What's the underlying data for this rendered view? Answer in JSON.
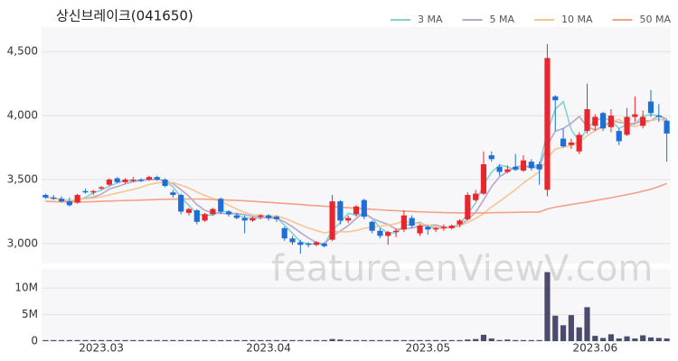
{
  "chart_data": {
    "type": "candlestick",
    "title": "상신브레이크(041650)",
    "watermark": "feature.enViewV.com",
    "up_color": "#e8262d",
    "down_color": "#1d6fd6",
    "volume_color": "#4b4b6e",
    "categories": [
      null,
      null,
      null,
      null,
      null,
      null,
      null,
      "2023.03",
      null,
      null,
      null,
      null,
      null,
      null,
      null,
      null,
      null,
      null,
      null,
      null,
      null,
      null,
      null,
      null,
      null,
      null,
      null,
      null,
      "2023.04",
      null,
      null,
      null,
      null,
      null,
      null,
      null,
      null,
      null,
      null,
      null,
      null,
      null,
      null,
      null,
      null,
      null,
      null,
      null,
      "2023.05",
      null,
      null,
      null,
      null,
      null,
      null,
      null,
      null,
      null,
      null,
      null,
      null,
      null,
      null,
      null,
      null,
      null,
      null,
      null,
      null,
      "2023.06",
      null,
      null,
      null,
      null,
      null,
      null,
      null,
      null,
      null
    ],
    "open": [
      3380,
      3360,
      3350,
      3330,
      3320,
      3410,
      3400,
      3430,
      3460,
      3510,
      3480,
      3490,
      3500,
      3500,
      3520,
      3500,
      3400,
      3380,
      3240,
      3260,
      3180,
      3230,
      3350,
      3250,
      3220,
      3200,
      3180,
      3210,
      3220,
      3210,
      3120,
      3040,
      3010,
      3000,
      2990,
      3000,
      3030,
      3330,
      3180,
      3230,
      3340,
      3170,
      3100,
      3060,
      3090,
      3110,
      3200,
      3080,
      3130,
      3110,
      3120,
      3120,
      3150,
      3190,
      3340,
      3390,
      3690,
      3600,
      3560,
      3600,
      3570,
      3640,
      3620,
      3420,
      4150,
      3820,
      3770,
      3720,
      3880,
      3920,
      4020,
      3910,
      3880,
      3850,
      3990,
      3920,
      4110,
      4000,
      3960
    ],
    "high": [
      3390,
      3380,
      3370,
      3360,
      3390,
      3430,
      3420,
      3450,
      3510,
      3520,
      3510,
      3520,
      3510,
      3530,
      3530,
      3510,
      3420,
      3390,
      3280,
      3270,
      3240,
      3280,
      3360,
      3260,
      3240,
      3220,
      3210,
      3230,
      3230,
      3220,
      3130,
      3060,
      3030,
      3010,
      3020,
      3010,
      3380,
      3340,
      3220,
      3300,
      3350,
      3180,
      3120,
      3100,
      3120,
      3260,
      3220,
      3150,
      3140,
      3130,
      3150,
      3150,
      3190,
      3400,
      3420,
      3720,
      3720,
      3620,
      3610,
      3700,
      3690,
      3660,
      3640,
      4560,
      4160,
      3900,
      3820,
      3870,
      4250,
      4010,
      4030,
      4050,
      3900,
      4060,
      4150,
      4040,
      4200,
      4090,
      3970
    ],
    "low": [
      3350,
      3340,
      3320,
      3290,
      3310,
      3390,
      3380,
      3420,
      3450,
      3470,
      3470,
      3480,
      3480,
      3490,
      3490,
      3440,
      3360,
      3230,
      3220,
      3150,
      3170,
      3220,
      3230,
      3210,
      3190,
      3080,
      3170,
      3190,
      3180,
      3170,
      3020,
      2990,
      2920,
      2970,
      2980,
      2970,
      3020,
      3150,
      3160,
      3210,
      3190,
      3080,
      3040,
      2990,
      3050,
      3090,
      3120,
      3060,
      3070,
      3090,
      3100,
      3110,
      3130,
      3180,
      3330,
      3380,
      3640,
      3530,
      3550,
      3570,
      3560,
      3570,
      3460,
      3370,
      3880,
      3750,
      3740,
      3700,
      3860,
      3880,
      3880,
      3870,
      3770,
      3840,
      3950,
      3900,
      3990,
      3950,
      3640
    ],
    "close": [
      3360,
      3350,
      3330,
      3300,
      3380,
      3400,
      3410,
      3440,
      3500,
      3480,
      3500,
      3500,
      3490,
      3520,
      3500,
      3450,
      3380,
      3250,
      3270,
      3170,
      3230,
      3270,
      3250,
      3230,
      3200,
      3180,
      3200,
      3220,
      3200,
      3190,
      3040,
      3010,
      2990,
      2990,
      3010,
      2980,
      3330,
      3180,
      3200,
      3290,
      3210,
      3100,
      3060,
      3090,
      3100,
      3220,
      3140,
      3140,
      3110,
      3120,
      3130,
      3140,
      3180,
      3380,
      3390,
      3620,
      3660,
      3560,
      3580,
      3580,
      3650,
      3590,
      3580,
      4450,
      4120,
      3760,
      3790,
      3850,
      4050,
      3990,
      3900,
      4000,
      3800,
      3990,
      4010,
      3990,
      4020,
      3990,
      3860
    ],
    "volume": [
      200000,
      200000,
      200000,
      200000,
      200000,
      200000,
      200000,
      200000,
      200000,
      200000,
      200000,
      200000,
      200000,
      200000,
      200000,
      200000,
      200000,
      200000,
      200000,
      200000,
      200000,
      200000,
      200000,
      200000,
      200000,
      200000,
      200000,
      200000,
      200000,
      200000,
      200000,
      200000,
      200000,
      200000,
      200000,
      200000,
      400000,
      300000,
      200000,
      200000,
      200000,
      200000,
      200000,
      200000,
      200000,
      200000,
      200000,
      200000,
      200000,
      200000,
      200000,
      200000,
      200000,
      300000,
      400000,
      1200000,
      500000,
      200000,
      300000,
      200000,
      200000,
      200000,
      200000,
      13000000,
      4800000,
      3000000,
      4900000,
      2600000,
      6400000,
      1000000,
      600000,
      1300000,
      500000,
      900000,
      500000,
      1100000,
      700000,
      600000,
      500000
    ],
    "series": [
      {
        "name": "3 MA",
        "color": "#7fd4d0",
        "values": [
          3360,
          3355,
          3347,
          3327,
          3337,
          3360,
          3397,
          3417,
          3450,
          3473,
          3493,
          3493,
          3497,
          3503,
          3503,
          3490,
          3443,
          3360,
          3300,
          3230,
          3223,
          3223,
          3250,
          3250,
          3227,
          3203,
          3193,
          3200,
          3207,
          3203,
          3143,
          3080,
          3013,
          2997,
          2997,
          2993,
          3107,
          3163,
          3237,
          3223,
          3233,
          3200,
          3123,
          3083,
          3083,
          3137,
          3153,
          3167,
          3130,
          3123,
          3120,
          3130,
          3150,
          3233,
          3317,
          3463,
          3557,
          3613,
          3600,
          3573,
          3603,
          3607,
          3607,
          3873,
          4050,
          4110,
          3890,
          3800,
          3897,
          3963,
          3980,
          3963,
          3900,
          3930,
          3933,
          3997,
          4007,
          4000,
          3957
        ]
      },
      {
        "name": "5 MA",
        "color": "#b9a6c9",
        "values": [
          3360,
          3355,
          3347,
          3335,
          3344,
          3352,
          3364,
          3386,
          3426,
          3446,
          3466,
          3484,
          3494,
          3498,
          3502,
          3492,
          3468,
          3420,
          3370,
          3304,
          3260,
          3238,
          3238,
          3230,
          3236,
          3226,
          3212,
          3206,
          3200,
          3198,
          3170,
          3132,
          3086,
          3044,
          3008,
          2996,
          3060,
          3098,
          3140,
          3196,
          3242,
          3196,
          3172,
          3150,
          3112,
          3114,
          3122,
          3138,
          3142,
          3146,
          3128,
          3128,
          3136,
          3190,
          3244,
          3342,
          3446,
          3522,
          3562,
          3600,
          3606,
          3592,
          3596,
          3770,
          3878,
          3900,
          3940,
          3994,
          3914,
          3888,
          3916,
          3958,
          3948,
          3936,
          3940,
          3958,
          3962,
          4000,
          3974
        ]
      },
      {
        "name": "10 MA",
        "color": "#f5c690",
        "values": [
          3360,
          3355,
          3347,
          3335,
          3344,
          3350,
          3356,
          3366,
          3381,
          3395,
          3409,
          3424,
          3440,
          3462,
          3474,
          3479,
          3476,
          3457,
          3434,
          3403,
          3376,
          3353,
          3329,
          3300,
          3270,
          3243,
          3225,
          3222,
          3215,
          3217,
          3198,
          3172,
          3146,
          3122,
          3103,
          3083,
          3096,
          3092,
          3092,
          3102,
          3119,
          3128,
          3135,
          3145,
          3154,
          3178,
          3159,
          3155,
          3146,
          3129,
          3121,
          3125,
          3137,
          3166,
          3195,
          3235,
          3287,
          3329,
          3376,
          3422,
          3474,
          3519,
          3559,
          3666,
          3739,
          3753,
          3766,
          3795,
          3842,
          3883,
          3908,
          3949,
          3971,
          3925,
          3914,
          3937,
          3960,
          3974,
          3955
        ]
      },
      {
        "name": "50 MA",
        "color": "#f3a187",
        "values": [
          3330,
          3328,
          3326,
          3325,
          3325,
          3326,
          3328,
          3330,
          3332,
          3334,
          3336,
          3338,
          3340,
          3342,
          3344,
          3346,
          3347,
          3348,
          3348,
          3348,
          3347,
          3345,
          3342,
          3340,
          3337,
          3334,
          3330,
          3326,
          3322,
          3318,
          3314,
          3310,
          3305,
          3300,
          3296,
          3292,
          3288,
          3284,
          3280,
          3276,
          3272,
          3268,
          3264,
          3260,
          3257,
          3254,
          3251,
          3248,
          3246,
          3244,
          3242,
          3241,
          3240,
          3240,
          3240,
          3240,
          3241,
          3242,
          3243,
          3244,
          3245,
          3246,
          3247,
          3270,
          3285,
          3295,
          3305,
          3315,
          3325,
          3336,
          3347,
          3358,
          3370,
          3382,
          3395,
          3410,
          3425,
          3445,
          3470
        ]
      }
    ],
    "ylim": [
      2844,
      4692
    ],
    "yticks": [
      {
        "value": 3000,
        "label": "3,000"
      },
      {
        "value": 3500,
        "label": "3,500"
      },
      {
        "value": 4000,
        "label": "4,000"
      },
      {
        "value": 4500,
        "label": "4,500"
      }
    ],
    "volume_ylim": [
      0,
      13600000
    ],
    "volume_yticks": [
      0,
      {
        "value": 5000000,
        "label": "5M"
      },
      {
        "value": 10000000,
        "label": "10M"
      }
    ],
    "grid": true
  }
}
